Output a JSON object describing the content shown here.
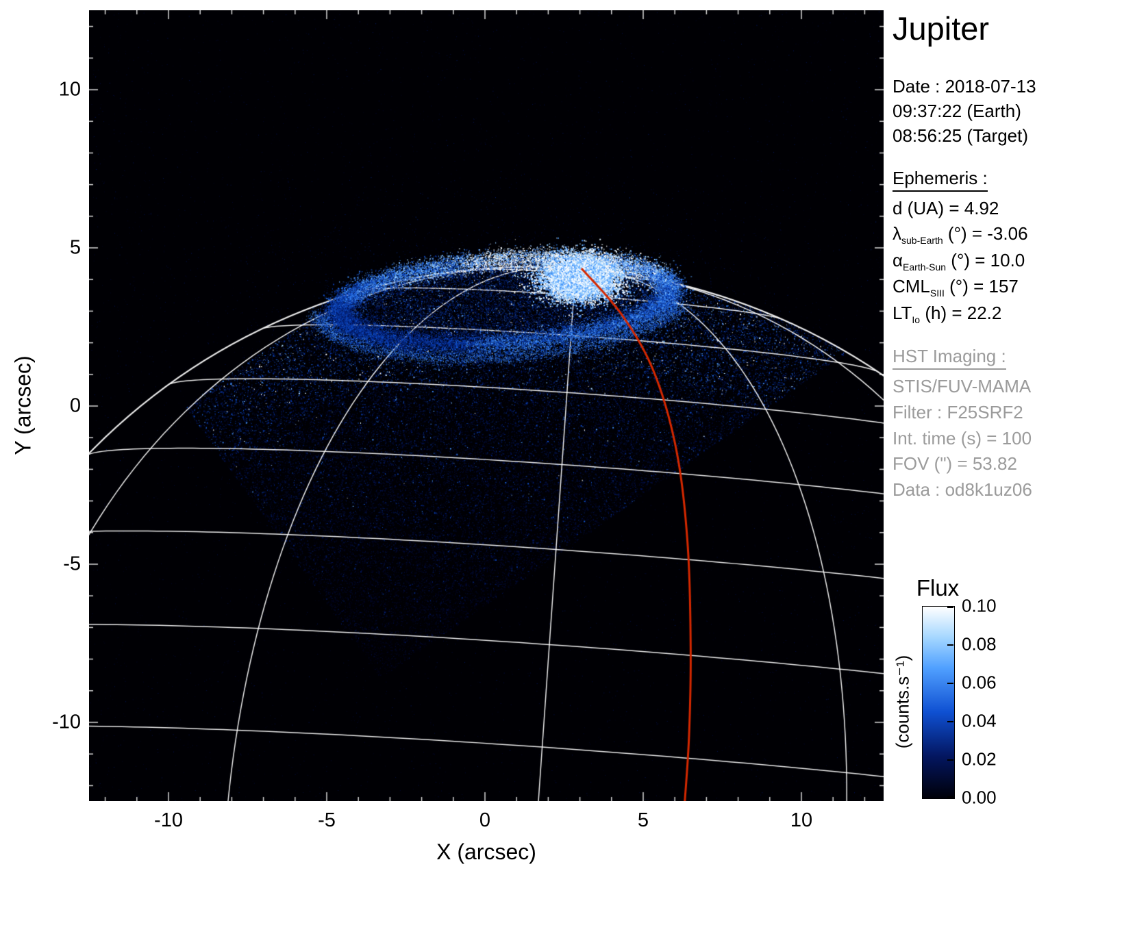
{
  "title": "Jupiter",
  "axes": {
    "xlabel": "X (arcsec)",
    "ylabel": "Y (arcsec)",
    "x_ticks": [
      "-10",
      "-5",
      "0",
      "5",
      "10"
    ],
    "y_ticks": [
      "10",
      "5",
      "0",
      "-5",
      "-10"
    ]
  },
  "info": {
    "date_line": "Date : 2018-07-13",
    "time_earth": "09:37:22 (Earth)",
    "time_target": "08:56:25 (Target)",
    "ephemeris_header": "Ephemeris :",
    "ephemeris_rows": [
      {
        "base": "d (UA)",
        "sub": "",
        "rest": "  = 4.92"
      },
      {
        "base": "λ",
        "sub": "sub-Earth",
        "rest": " (°) = -3.06"
      },
      {
        "base": "α",
        "sub": "Earth-Sun",
        "rest": " (°) = 10.0"
      },
      {
        "base": "CML",
        "sub": "SIII",
        "rest": " (°) = 157"
      },
      {
        "base": "LT",
        "sub": "Io",
        "rest": " (h) = 22.2"
      }
    ],
    "hst_header": "HST Imaging :",
    "hst_rows": [
      "STIS/FUV-MAMA",
      "Filter : F25SRF2",
      "Int. time (s) = 100",
      "FOV (\") = 53.82",
      "Data : od8k1uz06"
    ]
  },
  "colorbar": {
    "title": "Flux",
    "unit": "(counts.s⁻¹)",
    "ticks": [
      "0.10",
      "0.08",
      "0.06",
      "0.04",
      "0.02",
      "0.00"
    ],
    "colors": {
      "high": "#ffffff",
      "mid": "#1e64dc",
      "low": "#000008",
      "track": "#d42800"
    }
  },
  "chart_data": {
    "type": "heatmap",
    "title": "Jupiter",
    "xlabel": "X (arcsec)",
    "ylabel": "Y (arcsec)",
    "xlim": [
      -12.5,
      12.5
    ],
    "ylim": [
      -12.5,
      12.5
    ],
    "x_ticks": [
      -10,
      -5,
      0,
      5,
      10
    ],
    "y_ticks": [
      10,
      5,
      0,
      -5,
      -10
    ],
    "flux_range_counts_per_s": [
      0.0,
      0.1
    ],
    "colorbar_ticks": [
      0.1,
      0.08,
      0.06,
      0.04,
      0.02,
      0.0
    ],
    "observation": {
      "date": "2018-07-13",
      "time_earth": "09:37:22",
      "time_target": "08:56:25",
      "d_UA": 4.92,
      "lambda_sub_earth_deg": -3.06,
      "alpha_earth_sun_deg": 10.0,
      "cml_siii_deg": 157,
      "lt_io_h": 22.2,
      "instrument": "STIS/FUV-MAMA",
      "filter": "F25SRF2",
      "int_time_s": 100,
      "fov_arcsec": 53.82,
      "data_id": "od8k1uz06"
    },
    "features": {
      "auroral_oval": {
        "center_arcsec": [
          0.6,
          3.32
        ],
        "rx_arcsec": 5.25,
        "ry_arcsec": 1.3,
        "tilt_deg": 4
      },
      "bright_spot_arcsec": [
        3.0,
        4.05
      ],
      "detector_region_polygon_arcsec": [
        [
          -9.5,
          0.0
        ],
        [
          -3.3,
          -8.6
        ],
        [
          11.7,
          1.9
        ],
        [
          5.5,
          10.5
        ]
      ],
      "planet_limb": {
        "center_arcsec": [
          1.5,
          -15.2
        ],
        "radius_arcsec": 19.6
      },
      "grid": {
        "parallels_deg_step": 10,
        "meridians_deg_step": 30,
        "pole_position_angle_deg": -4
      },
      "red_track_arcsec": [
        [
          3.05,
          4.35
        ],
        [
          4.35,
          2.85
        ],
        [
          5.35,
          1.05
        ],
        [
          6.05,
          -1.4
        ],
        [
          6.4,
          -4.3
        ],
        [
          6.5,
          -7.6
        ],
        [
          6.45,
          -10.4
        ],
        [
          6.3,
          -12.7
        ]
      ]
    }
  }
}
